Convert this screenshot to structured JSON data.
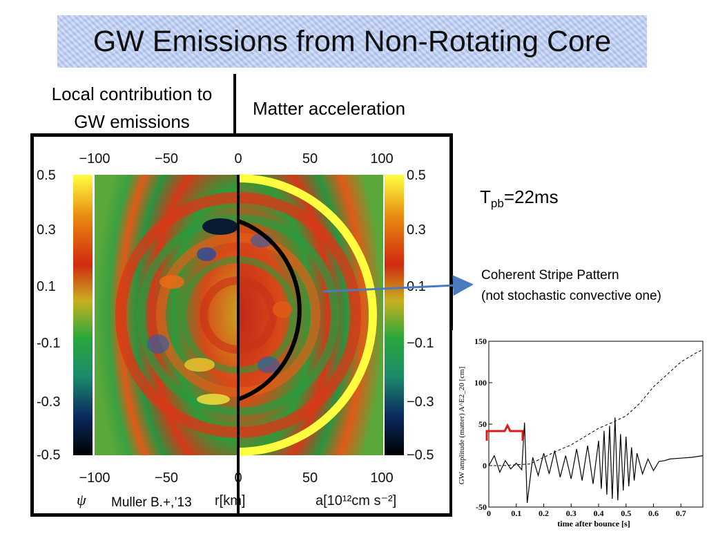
{
  "slide": {
    "title": "GW Emissions from Non-Rotating Core",
    "label_local": "Local contribution to GW emissions",
    "label_matter": "Matter acceleration",
    "tpb_prefix": "T",
    "tpb_sub": "pb",
    "tpb_value": "=22ms",
    "stripe_line1": "Coherent Stripe Pattern",
    "stripe_line2": "(not stochastic convective one)"
  },
  "simulation": {
    "top_ticks": [
      "−100",
      "−50",
      "0",
      "50",
      "100"
    ],
    "bottom_ticks": [
      "−100",
      "−50",
      "0",
      "50",
      "100"
    ],
    "left_scale": [
      "0.5",
      "0.3",
      "0.1",
      "-0.1",
      "-0.3",
      "-0.5"
    ],
    "right_scale": [
      "0.5",
      "0.3",
      "0.1",
      "−0.1",
      "−0.3",
      "−0.5"
    ],
    "psi_symbol": "ψ",
    "r_label": "r[km]",
    "a_label": "a[10¹²cm s⁻²]",
    "citation": "Muller B.+,’13",
    "colormap": [
      "#000000",
      "#0a2a60",
      "#1c8a6a",
      "#2aa83a",
      "#c8b020",
      "#d02a10",
      "#e88a10",
      "#ffff40"
    ]
  },
  "chart_data": {
    "type": "line",
    "title": "",
    "xlabel": "time after bounce [s]",
    "ylabel": "GW amplitude (matter) A^E2_20 [cm]",
    "xlim": [
      0,
      0.78
    ],
    "ylim": [
      -50,
      150
    ],
    "x_ticks": [
      "0",
      "0.1",
      "0.2",
      "0.3",
      "0.4",
      "0.5",
      "0.6",
      "0.7"
    ],
    "y_ticks": [
      "-50",
      "0",
      "50",
      "100",
      "150"
    ],
    "series": [
      {
        "style": "solid",
        "x": [
          0.0,
          0.02,
          0.04,
          0.06,
          0.08,
          0.1,
          0.12,
          0.13,
          0.14,
          0.16,
          0.18,
          0.2,
          0.22,
          0.24,
          0.26,
          0.28,
          0.3,
          0.32,
          0.34,
          0.36,
          0.38,
          0.4,
          0.41,
          0.42,
          0.43,
          0.44,
          0.45,
          0.46,
          0.47,
          0.48,
          0.49,
          0.5,
          0.51,
          0.52,
          0.53,
          0.54,
          0.56,
          0.58,
          0.6,
          0.62,
          0.64,
          0.66,
          0.7,
          0.74,
          0.78
        ],
        "values": [
          0,
          12,
          -8,
          6,
          -4,
          3,
          -5,
          52,
          -45,
          10,
          -12,
          15,
          -10,
          18,
          -14,
          12,
          -16,
          20,
          -18,
          24,
          -22,
          30,
          -28,
          42,
          -35,
          48,
          -40,
          58,
          -42,
          38,
          -30,
          35,
          -25,
          22,
          -18,
          15,
          -10,
          8,
          -6,
          5,
          6,
          8,
          9,
          10,
          12
        ]
      },
      {
        "style": "dashed",
        "x": [
          0.0,
          0.05,
          0.1,
          0.15,
          0.2,
          0.25,
          0.3,
          0.35,
          0.4,
          0.45,
          0.5,
          0.55,
          0.6,
          0.65,
          0.7,
          0.75,
          0.78
        ],
        "values": [
          0,
          0,
          1,
          2,
          10,
          18,
          25,
          35,
          45,
          52,
          60,
          75,
          95,
          110,
          125,
          135,
          140
        ]
      }
    ]
  }
}
